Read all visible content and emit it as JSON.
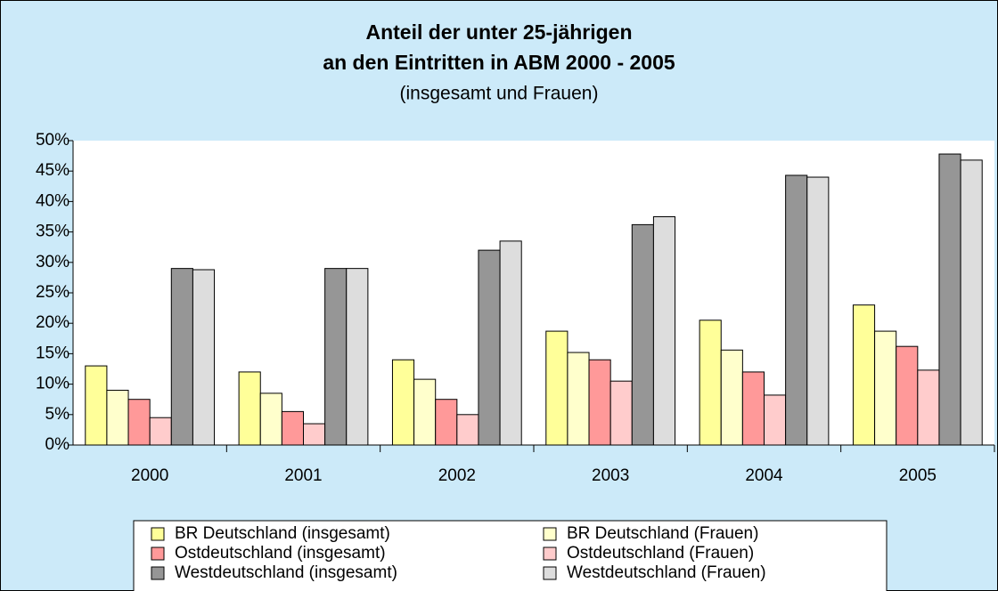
{
  "chart_data": {
    "type": "bar",
    "title": [
      "Anteil der unter 25-jährigen",
      "an den Eintritten in ABM 2000 - 2005"
    ],
    "subtitle": "(insgesamt und Frauen)",
    "categories": [
      "2000",
      "2001",
      "2002",
      "2003",
      "2004",
      "2005"
    ],
    "series": [
      {
        "name": "BR Deutschland (insgesamt)",
        "color": "#ffff99",
        "values": [
          13,
          12,
          14,
          18.7,
          20.5,
          23
        ]
      },
      {
        "name": "BR Deutschland (Frauen)",
        "color": "#ffffcc",
        "values": [
          9,
          8.5,
          10.8,
          15.2,
          15.6,
          18.7
        ]
      },
      {
        "name": "Ostdeutschland (insgesamt)",
        "color": "#ff9999",
        "values": [
          7.5,
          5.5,
          7.5,
          14,
          12,
          16.2
        ]
      },
      {
        "name": "Ostdeutschland (Frauen)",
        "color": "#ffcccc",
        "values": [
          4.5,
          3.5,
          5,
          10.5,
          8.2,
          12.3
        ]
      },
      {
        "name": "Westdeutschland (insgesamt)",
        "color": "#969696",
        "values": [
          29,
          29,
          32,
          36.2,
          44.3,
          47.8
        ]
      },
      {
        "name": "Westdeutschland (Frauen)",
        "color": "#dddddd",
        "values": [
          28.8,
          29,
          33.5,
          37.5,
          44,
          46.8
        ]
      }
    ],
    "ylim": [
      0,
      50
    ],
    "yticks": [
      {
        "value": 0,
        "label": "0%"
      },
      {
        "value": 5,
        "label": "5%"
      },
      {
        "value": 10,
        "label": "10%"
      },
      {
        "value": 15,
        "label": "15%"
      },
      {
        "value": 20,
        "label": "20%"
      },
      {
        "value": 25,
        "label": "25%"
      },
      {
        "value": 30,
        "label": "30%"
      },
      {
        "value": 35,
        "label": "35%"
      },
      {
        "value": 40,
        "label": "40%"
      },
      {
        "value": 45,
        "label": "45%"
      },
      {
        "value": 50,
        "label": "50%"
      }
    ],
    "grid": false,
    "legend": "bottom"
  }
}
